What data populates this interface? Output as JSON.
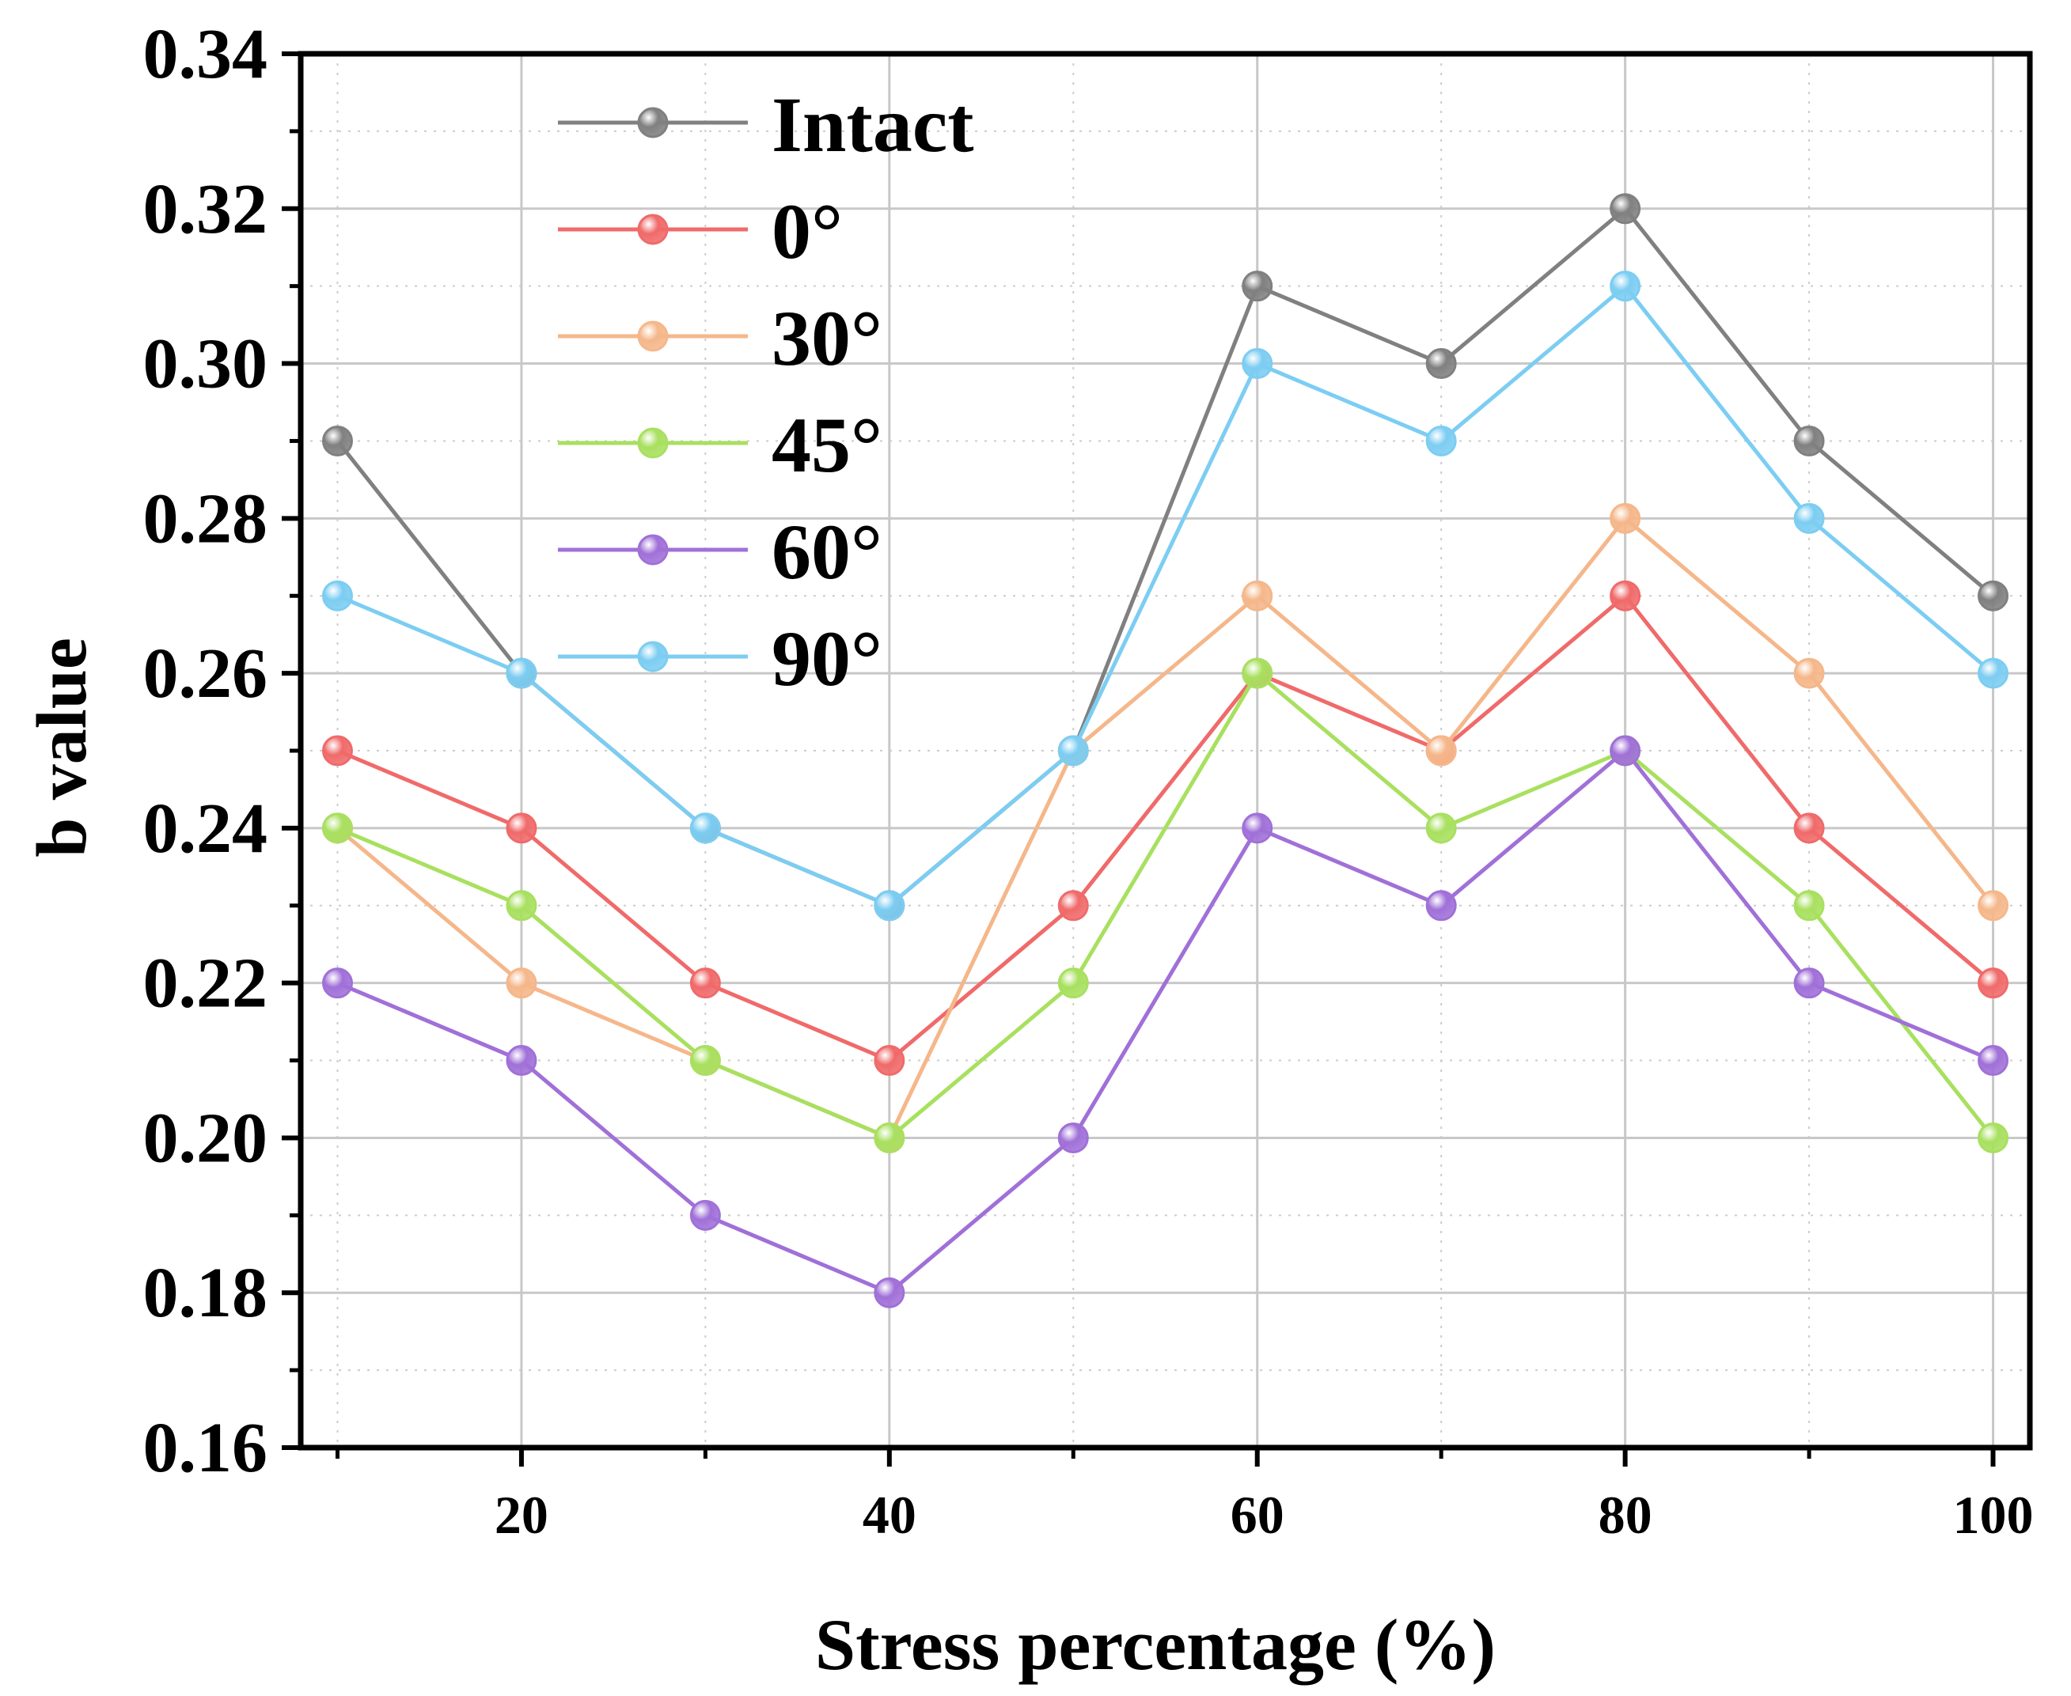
{
  "chart_data": {
    "type": "line",
    "title": "",
    "xlabel": "Stress percentage (%)",
    "ylabel": "b value",
    "xlim": [
      8,
      102
    ],
    "ylim": [
      0.16,
      0.34
    ],
    "x": [
      10,
      20,
      30,
      40,
      50,
      60,
      70,
      80,
      90,
      100
    ],
    "xticks": [
      20,
      40,
      60,
      80,
      100
    ],
    "xtick_labels": [
      "20",
      "40",
      "60",
      "80",
      "100"
    ],
    "yticks": [
      0.16,
      0.18,
      0.2,
      0.22,
      0.24,
      0.26,
      0.28,
      0.3,
      0.32,
      0.34
    ],
    "ytick_labels": [
      "0.16",
      "0.18",
      "0.20",
      "0.22",
      "0.24",
      "0.26",
      "0.28",
      "0.30",
      "0.32",
      "0.34"
    ],
    "grid": true,
    "legend_position": "top-left",
    "series": [
      {
        "name": "Intact",
        "color": "#808080",
        "values": [
          0.29,
          0.26,
          0.24,
          0.23,
          0.25,
          0.31,
          0.3,
          0.32,
          0.29,
          0.27
        ]
      },
      {
        "name": "0°",
        "color": "#F06A6A",
        "values": [
          0.25,
          0.24,
          0.22,
          0.21,
          0.23,
          0.26,
          0.25,
          0.27,
          0.24,
          0.22
        ]
      },
      {
        "name": "30°",
        "color": "#F5B78A",
        "values": [
          0.24,
          0.22,
          0.21,
          0.2,
          0.25,
          0.27,
          0.25,
          0.28,
          0.26,
          0.23
        ]
      },
      {
        "name": "45°",
        "color": "#A8E05F",
        "values": [
          0.24,
          0.23,
          0.21,
          0.2,
          0.22,
          0.26,
          0.24,
          0.25,
          0.23,
          0.2
        ]
      },
      {
        "name": "60°",
        "color": "#A070D8",
        "values": [
          0.22,
          0.21,
          0.19,
          0.18,
          0.2,
          0.24,
          0.23,
          0.25,
          0.22,
          0.21
        ]
      },
      {
        "name": "90°",
        "color": "#7CCDF2",
        "values": [
          0.27,
          0.26,
          0.24,
          0.23,
          0.25,
          0.3,
          0.29,
          0.31,
          0.28,
          0.26
        ]
      }
    ]
  }
}
